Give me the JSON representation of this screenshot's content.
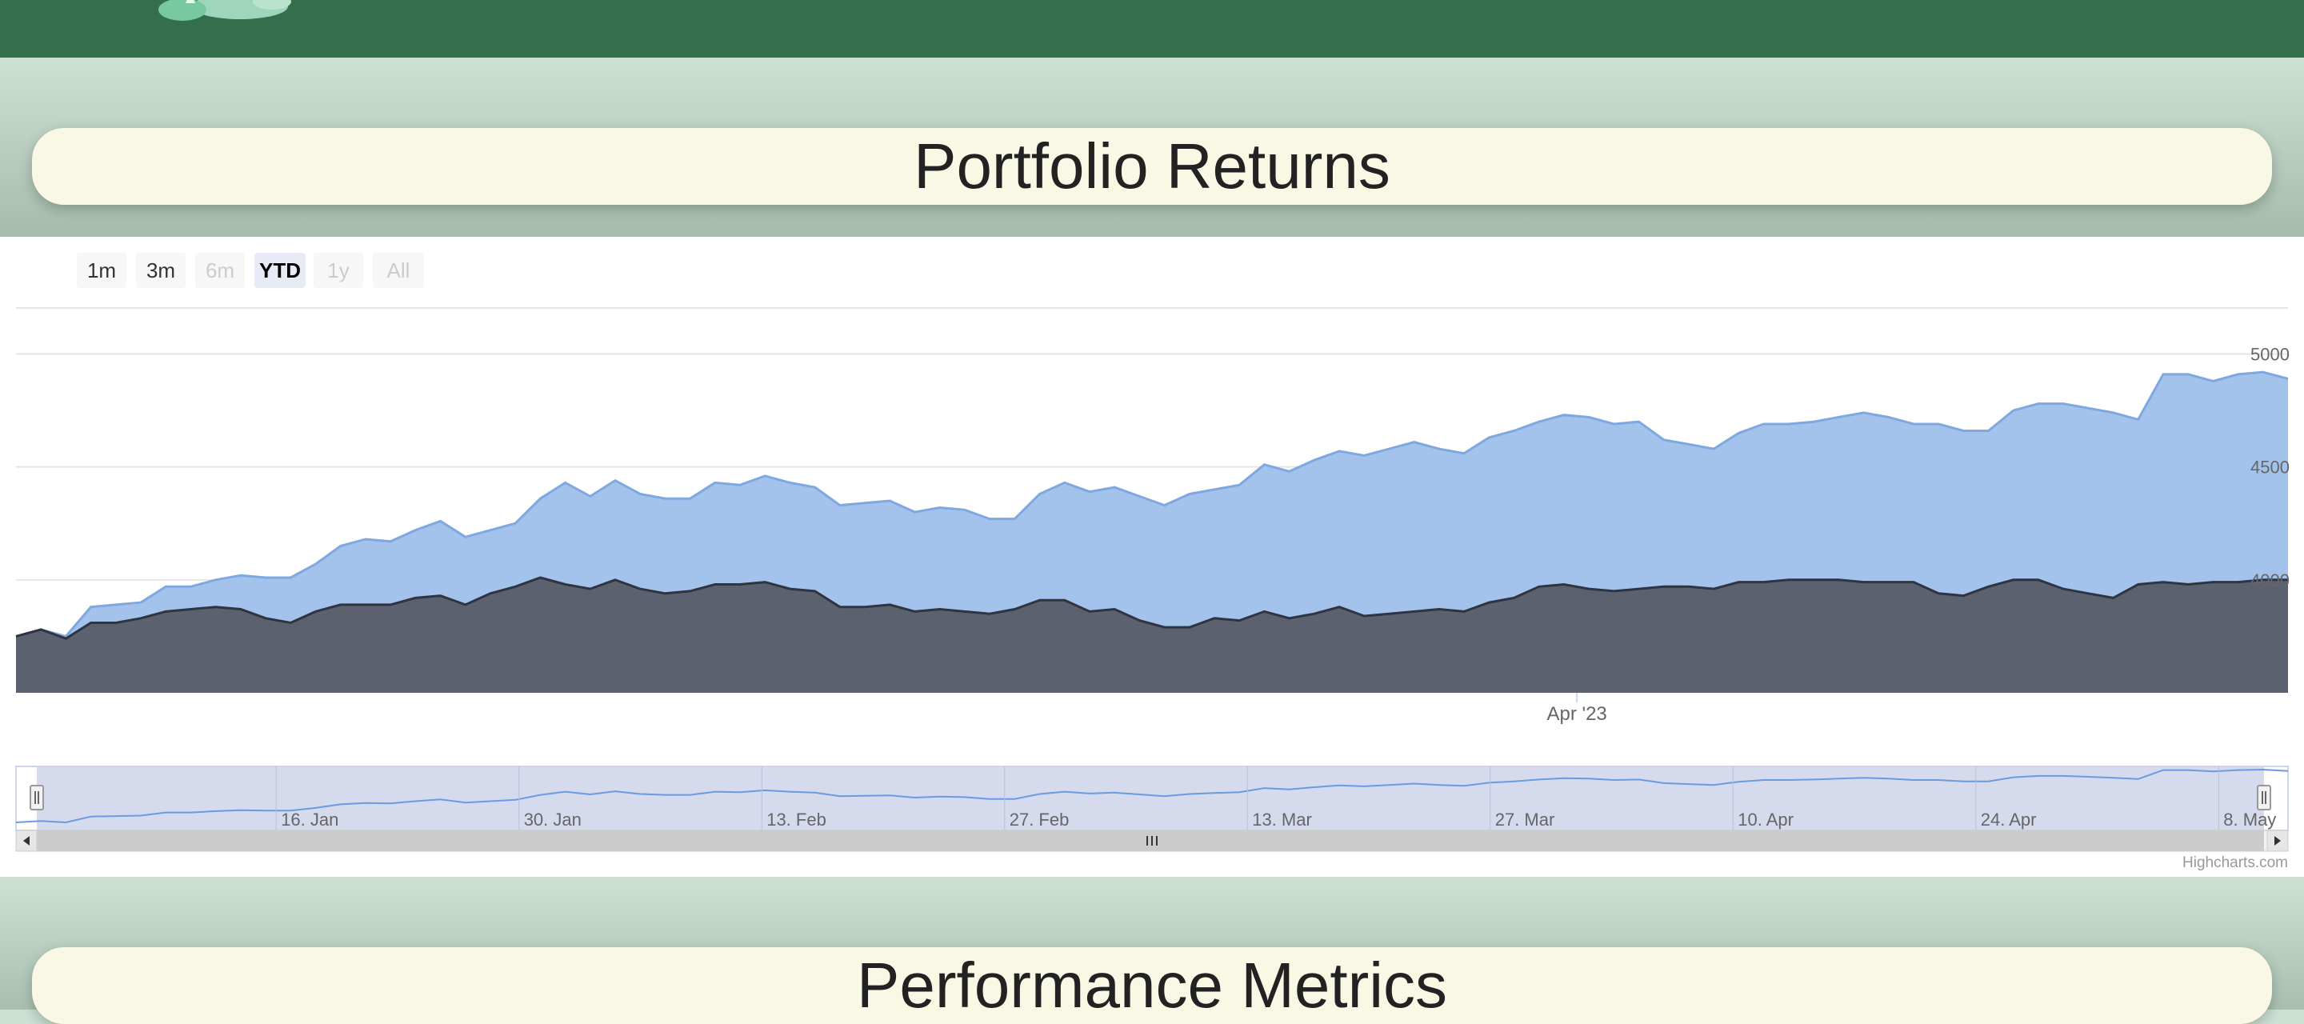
{
  "page": {
    "section_titles": [
      "Portfolio Returns",
      "Performance Metrics"
    ]
  },
  "colors": {
    "header_bg": "#336f4c",
    "band_bg": "#cde0d4",
    "title_card_bg": "#f8f8e5",
    "portfolio_fill": "#a3c3ec",
    "portfolio_line": "#7fa8e0",
    "benchmark_fill": "#5c6170",
    "benchmark_line": "#2f3440",
    "navigator_fill": "#d0d6eb"
  },
  "range_selector": {
    "buttons": [
      {
        "label": "1m",
        "state": "normal"
      },
      {
        "label": "3m",
        "state": "normal"
      },
      {
        "label": "6m",
        "state": "disabled"
      },
      {
        "label": "YTD",
        "state": "selected"
      },
      {
        "label": "1y",
        "state": "disabled"
      },
      {
        "label": "All",
        "state": "disabled"
      }
    ]
  },
  "chart_data": {
    "type": "area",
    "title": "",
    "xlabel": "",
    "ylabel": "",
    "x_start": "2023-01-01",
    "x_end": "2023-05-12",
    "ylim": [
      3500,
      5200
    ],
    "y_ticks": [
      {
        "value": 5000,
        "label": "5000"
      },
      {
        "value": 4500,
        "label": "4500"
      },
      {
        "value": 4000,
        "label": "4000"
      }
    ],
    "x_ticks": [
      {
        "date": "2023-04-01",
        "label": "Apr '23"
      }
    ],
    "navigator_ticks": [
      {
        "date": "2023-01-16",
        "label": "16. Jan"
      },
      {
        "date": "2023-01-30",
        "label": "30. Jan"
      },
      {
        "date": "2023-02-13",
        "label": "13. Feb"
      },
      {
        "date": "2023-02-27",
        "label": "27. Feb"
      },
      {
        "date": "2023-03-13",
        "label": "13. Mar"
      },
      {
        "date": "2023-03-27",
        "label": "27. Mar"
      },
      {
        "date": "2023-04-10",
        "label": "10. Apr"
      },
      {
        "date": "2023-04-24",
        "label": "24. Apr"
      },
      {
        "date": "2023-05-08",
        "label": "8. May"
      }
    ],
    "grid": true,
    "series": [
      {
        "values": [
          3750,
          3780,
          3750,
          3880,
          3890,
          3900,
          3970,
          3970,
          4000,
          4020,
          4010,
          4010,
          4070,
          4150,
          4180,
          4170,
          4220,
          4260,
          4190,
          4220,
          4250,
          4360,
          4430,
          4370,
          4440,
          4380,
          4360,
          4360,
          4430,
          4420,
          4460,
          4430,
          4410,
          4330,
          4340,
          4350,
          4300,
          4320,
          4310,
          4270,
          4270,
          4380,
          4430,
          4390,
          4410,
          4370,
          4330,
          4380,
          4400,
          4420,
          4510,
          4480,
          4530,
          4570,
          4550,
          4580,
          4610,
          4580,
          4560,
          4630,
          4660,
          4700,
          4730,
          4720,
          4690,
          4700,
          4620,
          4600,
          4580,
          4650,
          4690,
          4690,
          4700,
          4720,
          4740,
          4720,
          4690,
          4690,
          4660,
          4660,
          4750,
          4780,
          4780,
          4760,
          4740,
          4710,
          4910,
          4910,
          4880,
          4910,
          4920,
          4890
        ]
      },
      {
        "values": [
          3750,
          3780,
          3740,
          3810,
          3810,
          3830,
          3860,
          3870,
          3880,
          3870,
          3830,
          3810,
          3860,
          3890,
          3890,
          3890,
          3920,
          3930,
          3890,
          3940,
          3970,
          4010,
          3980,
          3960,
          4000,
          3960,
          3940,
          3950,
          3980,
          3980,
          3990,
          3960,
          3950,
          3880,
          3880,
          3890,
          3860,
          3870,
          3860,
          3850,
          3870,
          3910,
          3910,
          3860,
          3870,
          3820,
          3790,
          3790,
          3830,
          3820,
          3860,
          3830,
          3850,
          3880,
          3840,
          3850,
          3860,
          3870,
          3860,
          3900,
          3920,
          3970,
          3980,
          3960,
          3950,
          3960,
          3970,
          3970,
          3960,
          3990,
          3990,
          4000,
          4000,
          4000,
          3990,
          3990,
          3990,
          3940,
          3930,
          3970,
          4000,
          4000,
          3960,
          3940,
          3920,
          3980,
          3990,
          3980,
          3990,
          3990,
          4000,
          4000
        ]
      }
    ]
  },
  "credits": "Highcharts.com"
}
